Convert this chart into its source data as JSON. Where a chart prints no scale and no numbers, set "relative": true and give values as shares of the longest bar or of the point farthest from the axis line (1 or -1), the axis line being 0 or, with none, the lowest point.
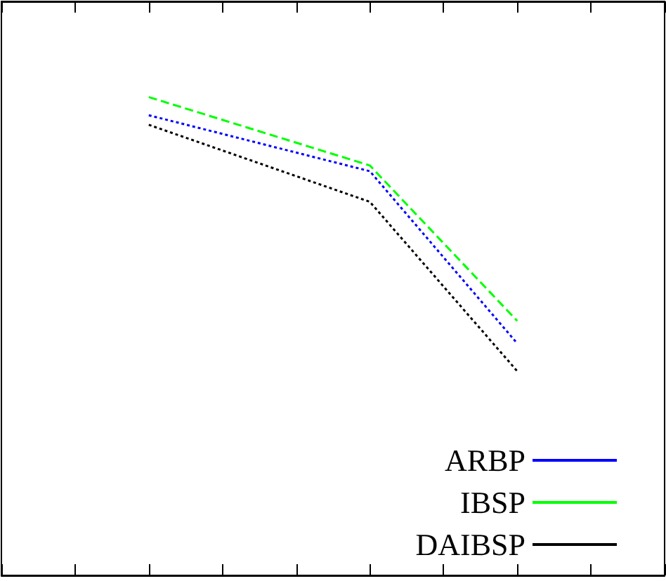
{
  "chart_data": {
    "type": "line",
    "relative": true,
    "categories": [
      null,
      null,
      null,
      null,
      null,
      null,
      null,
      null,
      null,
      null
    ],
    "series": [
      {
        "name": "ARBP",
        "color": "#0000ff",
        "line_style": "dotted",
        "values": [
          null,
          null,
          0.962,
          null,
          null,
          0.845,
          null,
          0.485,
          null,
          null
        ]
      },
      {
        "name": "IBSP",
        "color": "#00ff00",
        "line_style": "dashed",
        "values": [
          null,
          null,
          1,
          null,
          null,
          0.857,
          null,
          0.532,
          null,
          null
        ]
      },
      {
        "name": "DAIBSP",
        "color": "#000000",
        "line_style": "dotted",
        "values": [
          null,
          null,
          0.942,
          null,
          null,
          0.781,
          null,
          0.427,
          null,
          null
        ]
      }
    ],
    "legend": "bottom right",
    "marker": "none",
    "grid": false
  }
}
